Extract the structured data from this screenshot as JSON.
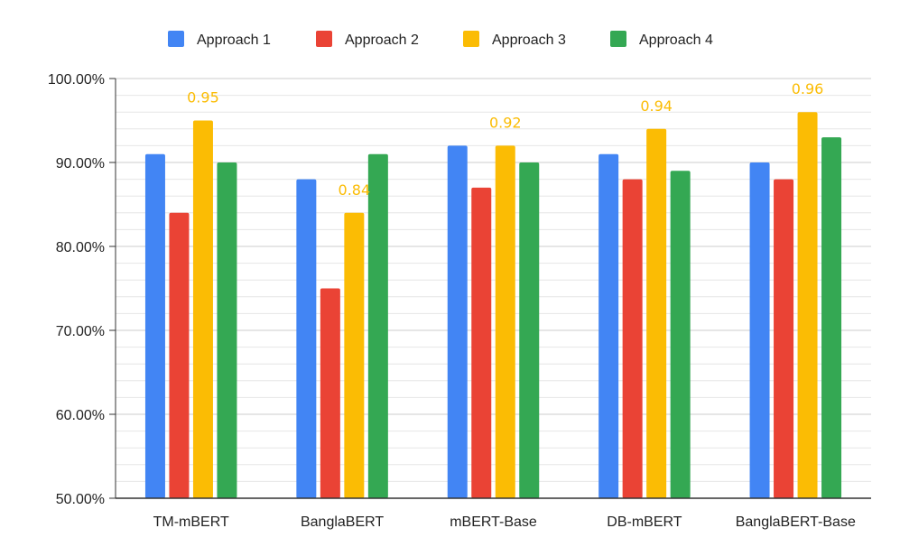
{
  "colors": {
    "approach_1": "#4285F4",
    "approach_2": "#EA4335",
    "approach_3": "#FBBC04",
    "approach_4": "#34A853",
    "grid": "#cccccc",
    "axis": "#333333",
    "data_label": "#FBBC04"
  },
  "chart_data": {
    "type": "bar",
    "title": "",
    "xlabel": "",
    "ylabel": "",
    "categories": [
      "TM-mBERT",
      "BanglaBERT",
      "mBERT-Base",
      "DB-mBERT",
      "BanglaBERT-Base"
    ],
    "series": [
      {
        "name": "Approach 1",
        "color_key": "approach_1",
        "values": [
          0.91,
          0.88,
          0.92,
          0.91,
          0.9
        ]
      },
      {
        "name": "Approach 2",
        "color_key": "approach_2",
        "values": [
          0.84,
          0.75,
          0.87,
          0.88,
          0.88
        ]
      },
      {
        "name": "Approach 3",
        "color_key": "approach_3",
        "values": [
          0.95,
          0.84,
          0.92,
          0.94,
          0.96
        ],
        "labels": [
          "0.95",
          "0.84",
          "0.92",
          "0.94",
          "0.96"
        ]
      },
      {
        "name": "Approach 4",
        "color_key": "approach_4",
        "values": [
          0.9,
          0.91,
          0.9,
          0.89,
          0.93
        ]
      }
    ],
    "ylim": [
      0.5,
      1.0
    ],
    "yticks": [
      {
        "value": 1.0,
        "label": "100.00%"
      },
      {
        "value": 0.9,
        "label": "90.00%"
      },
      {
        "value": 0.8,
        "label": "80.00%"
      },
      {
        "value": 0.7,
        "label": "70.00%"
      },
      {
        "value": 0.6,
        "label": "60.00%"
      },
      {
        "value": 0.5,
        "label": "50.00%"
      }
    ],
    "minor_gridlines_per_major": 5,
    "grid": true,
    "legend_position": "top"
  }
}
